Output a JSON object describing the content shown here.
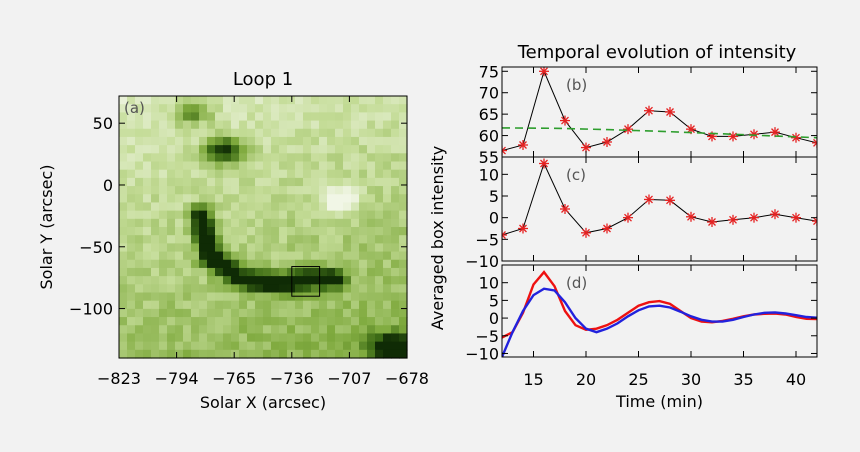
{
  "chart_data": [
    {
      "type": "heatmap",
      "title": "Loop 1",
      "panel_label": "(a)",
      "xlabel": "Solar X (arcsec)",
      "ylabel": "Solar Y (arcsec)",
      "xlim": [
        -823,
        -678
      ],
      "ylim": [
        -140,
        72
      ],
      "x_ticks": [
        -823,
        -794,
        -765,
        -736,
        -707,
        -678
      ],
      "y_ticks": [
        50,
        0,
        -50,
        -100
      ],
      "colormap": [
        "#f1f6e6",
        "#c4dc97",
        "#7faa3e",
        "#3d6b16",
        "#0f2b05"
      ],
      "features": [
        {
          "kind": "loop",
          "description_points": [
            [
              -782,
              -25
            ],
            [
              -777,
              -58
            ],
            [
              -763,
              -75
            ],
            [
              -745,
              -80
            ],
            [
              -725,
              -76
            ],
            [
              -715,
              -76
            ]
          ],
          "intensity": 0.9
        },
        {
          "kind": "blob",
          "center": [
            -786,
            58
          ],
          "intensity": 0.45
        },
        {
          "kind": "blob",
          "center": [
            -770,
            28
          ],
          "intensity": 0.8
        },
        {
          "kind": "blob",
          "center": [
            -686,
            -131
          ],
          "intensity": 0.95
        },
        {
          "kind": "bright",
          "center": [
            -712,
            -12
          ],
          "intensity": -0.5
        }
      ],
      "box": {
        "x": [
          -736,
          -722
        ],
        "y": [
          -90,
          -66
        ]
      }
    },
    {
      "type": "line",
      "title": "Temporal evolution of intensity",
      "ylabel": "Averaged box intensity",
      "xlabel": "Time (min)",
      "xlim": [
        12,
        42
      ],
      "x_ticks": [
        15,
        20,
        25,
        30,
        35,
        40
      ],
      "panels": [
        {
          "label": "(b)",
          "ylim": [
            55,
            76
          ],
          "y_ticks": [
            55,
            60,
            65,
            70,
            75
          ],
          "series": [
            {
              "style": "black-line-red-stars",
              "x": [
                12,
                14,
                16,
                18,
                20,
                22,
                24,
                26,
                28,
                30,
                32,
                34,
                36,
                38,
                40,
                42
              ],
              "y": [
                56.5,
                57.8,
                75.0,
                63.5,
                57.2,
                58.5,
                61.5,
                65.8,
                65.5,
                61.5,
                59.8,
                59.8,
                60.3,
                60.8,
                59.5,
                58.3
              ]
            },
            {
              "style": "green-dashed",
              "x": [
                12,
                17,
                22,
                27,
                32,
                37,
                42
              ],
              "y": [
                61.8,
                61.7,
                61.4,
                61.0,
                60.5,
                60.0,
                59.5
              ]
            }
          ]
        },
        {
          "label": "(c)",
          "ylim": [
            -10,
            14
          ],
          "y_ticks": [
            -10,
            -5,
            0,
            5,
            10
          ],
          "series": [
            {
              "style": "black-line-red-stars",
              "x": [
                12,
                14,
                16,
                18,
                20,
                22,
                24,
                26,
                28,
                30,
                32,
                34,
                36,
                38,
                40,
                42
              ],
              "y": [
                -4.0,
                -2.5,
                12.5,
                2.0,
                -3.5,
                -2.5,
                0.0,
                4.2,
                4.0,
                0.2,
                -1.0,
                -0.5,
                0.0,
                0.8,
                0.0,
                -0.8
              ]
            }
          ]
        },
        {
          "label": "(d)",
          "ylim": [
            -11,
            15
          ],
          "y_ticks": [
            -10,
            -5,
            0,
            5,
            10
          ],
          "series": [
            {
              "style": "red",
              "x": [
                12,
                13,
                14,
                15,
                16,
                17,
                18,
                19,
                20,
                21,
                22,
                23,
                24,
                25,
                26,
                27,
                28,
                29,
                30,
                31,
                32,
                33,
                34,
                35,
                36,
                37,
                38,
                39,
                40,
                41,
                42
              ],
              "y": [
                -5.5,
                -4.0,
                1.5,
                9.5,
                13.0,
                9.0,
                2.0,
                -2.0,
                -3.3,
                -3.0,
                -2.0,
                -0.5,
                1.5,
                3.5,
                4.5,
                4.8,
                4.0,
                2.0,
                0.0,
                -1.0,
                -1.2,
                -0.8,
                -0.2,
                0.5,
                1.0,
                1.2,
                1.3,
                1.0,
                0.3,
                -0.2,
                -0.3
              ]
            },
            {
              "style": "blue",
              "x": [
                12,
                13,
                14,
                15,
                16,
                17,
                18,
                19,
                20,
                21,
                22,
                23,
                24,
                25,
                26,
                27,
                28,
                29,
                30,
                31,
                32,
                33,
                34,
                35,
                36,
                37,
                38,
                39,
                40,
                41,
                42
              ],
              "y": [
                -11.0,
                -4.0,
                2.0,
                6.5,
                8.3,
                7.8,
                4.5,
                0.0,
                -3.0,
                -4.0,
                -3.0,
                -1.5,
                0.5,
                2.2,
                3.3,
                3.5,
                3.0,
                1.8,
                0.5,
                -0.5,
                -1.0,
                -1.0,
                -0.5,
                0.3,
                1.0,
                1.5,
                1.6,
                1.3,
                0.8,
                0.3,
                0.1
              ]
            }
          ]
        }
      ]
    }
  ]
}
